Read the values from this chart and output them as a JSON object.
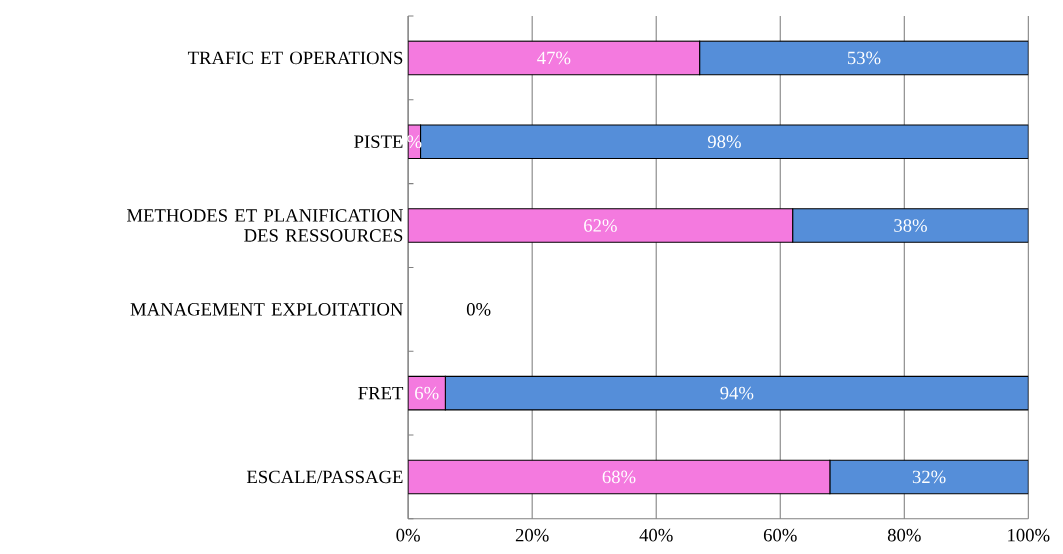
{
  "chart_data": {
    "type": "bar",
    "orientation": "horizontal",
    "stacked": true,
    "categories": [
      "TRAFIC ET OPERATIONS",
      "PISTE",
      "METHODES ET PLANIFICATION DES RESSOURCES",
      "MANAGEMENT EXPLOITATION",
      "FRET",
      "ESCALE/PASSAGE"
    ],
    "series": [
      {
        "color": "#f47adf",
        "values": [
          47,
          2,
          62,
          0,
          6,
          68
        ],
        "value_labels": [
          "47%",
          "%",
          "62%",
          "0%",
          "6%",
          "68%"
        ]
      },
      {
        "color": "#558ed9",
        "values": [
          53,
          98,
          38,
          0,
          94,
          32
        ],
        "value_labels": [
          "53%",
          "98%",
          "38%",
          null,
          "94%",
          "32%"
        ]
      }
    ],
    "xlim": [
      0,
      100
    ],
    "xticks": [
      {
        "value": 0,
        "label": "0%"
      },
      {
        "value": 20,
        "label": "20%"
      },
      {
        "value": 40,
        "label": "40%"
      },
      {
        "value": 60,
        "label": "60%"
      },
      {
        "value": 80,
        "label": "80%"
      },
      {
        "value": 100,
        "label": "100%"
      }
    ],
    "grid": "x"
  }
}
